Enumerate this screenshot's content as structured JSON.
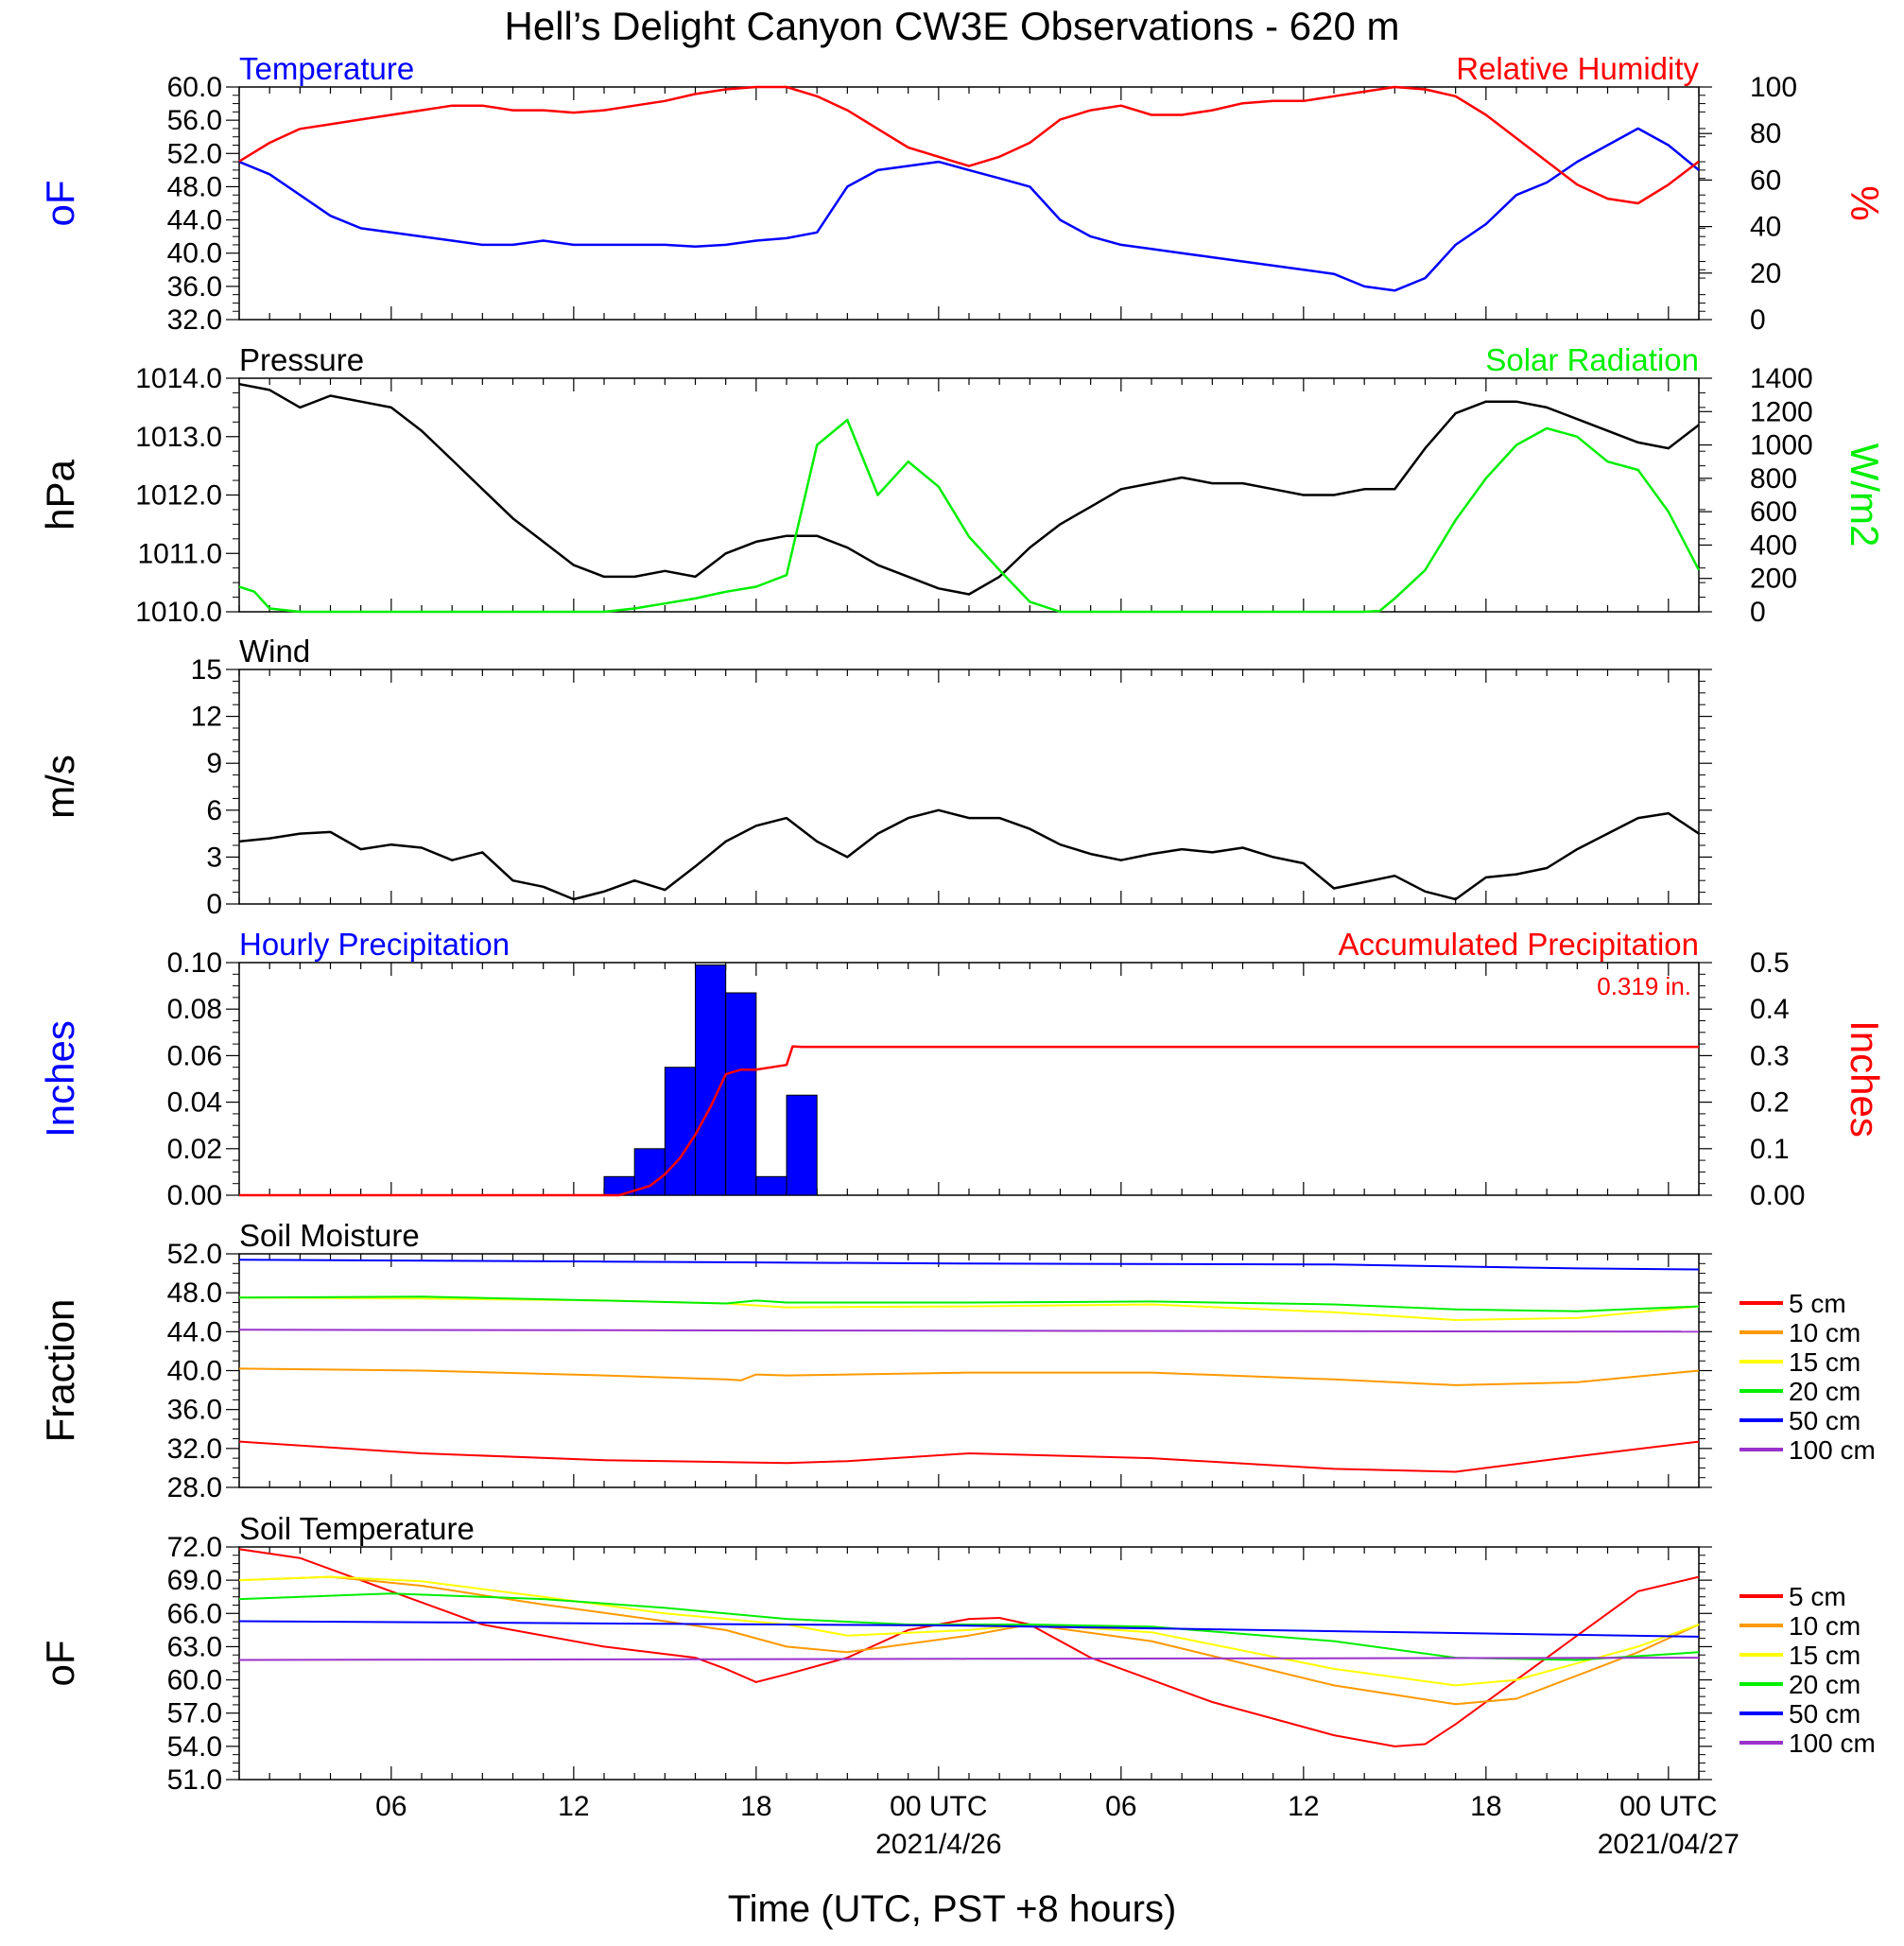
{
  "figure": {
    "title": "Hell’s Delight Canyon CW3E Observations - 620 m",
    "xlabel": "Time (UTC, PST +8 hours)",
    "x_ticks": [
      "06",
      "12",
      "18",
      "00 UTC",
      "06",
      "12",
      "18",
      "00 UTC"
    ],
    "dates": [
      "2021/4/26",
      "2021/04/27"
    ],
    "colors": {
      "blue": "#0000ff",
      "red": "#ff0000",
      "green": "#00ee00",
      "black": "#000000",
      "orange": "#ff9900",
      "yellow": "#ffff00",
      "purple": "#9932cc"
    }
  },
  "chart_data": [
    {
      "type": "line",
      "x_unit": "hours since 2021-04-25 01:00 UTC",
      "title_left": "Temperature",
      "title_right": "Relative Humidity",
      "ylabel_left": "oF",
      "ylabel_right": "%",
      "ylim_left": [
        32,
        60
      ],
      "ylim_right": [
        0,
        100
      ],
      "yticks_left": [
        "60.0",
        "56.0",
        "52.0",
        "48.0",
        "44.0",
        "40.0",
        "36.0",
        "32.0"
      ],
      "yticks_right": [
        "100",
        "80",
        "60",
        "40",
        "20",
        "0"
      ],
      "series": [
        {
          "name": "Temperature",
          "axis": "left",
          "color": "#0000ff",
          "x": [
            0,
            1,
            2,
            3,
            4,
            5,
            6,
            7,
            8,
            9,
            10,
            11,
            12,
            13,
            14,
            15,
            16,
            17,
            18,
            19,
            20,
            21,
            22,
            23,
            24,
            25,
            26,
            27,
            28,
            29,
            30,
            31,
            32,
            33,
            34,
            35,
            36,
            37,
            38,
            39,
            40,
            41,
            42,
            43,
            44,
            45,
            46,
            47,
            48
          ],
          "y": [
            51,
            49.5,
            47,
            44.5,
            43,
            42.5,
            42,
            41.5,
            41,
            41,
            41.5,
            41,
            41,
            41,
            41,
            40.8,
            41,
            41.5,
            41.8,
            42.5,
            48,
            50,
            50.5,
            51,
            50,
            49,
            48,
            44,
            42,
            41,
            40.5,
            40,
            39.5,
            39,
            38.5,
            38,
            37.5,
            36,
            35.5,
            37,
            41,
            43.5,
            47,
            48.5,
            51,
            53,
            55,
            53,
            50
          ]
        },
        {
          "name": "Relative Humidity",
          "axis": "right",
          "color": "#ff0000",
          "x": [
            0,
            1,
            2,
            3,
            4,
            5,
            6,
            7,
            8,
            9,
            10,
            11,
            12,
            13,
            14,
            15,
            16,
            17,
            18,
            19,
            20,
            21,
            22,
            23,
            24,
            25,
            26,
            27,
            28,
            29,
            30,
            31,
            32,
            33,
            34,
            35,
            36,
            37,
            38,
            39,
            40,
            41,
            42,
            43,
            44,
            45,
            46,
            47,
            48
          ],
          "y": [
            68,
            76,
            82,
            84,
            86,
            88,
            90,
            92,
            92,
            90,
            90,
            89,
            90,
            92,
            94,
            97,
            99,
            100,
            100,
            96,
            90,
            82,
            74,
            70,
            66,
            70,
            76,
            86,
            90,
            92,
            88,
            88,
            90,
            93,
            94,
            94,
            96,
            98,
            100,
            99,
            96,
            88,
            78,
            68,
            58,
            52,
            50,
            58,
            68
          ]
        }
      ]
    },
    {
      "type": "line",
      "x_unit": "hours since 2021-04-25 01:00 UTC",
      "title_left": "Pressure",
      "title_right": "Solar Radiation",
      "ylabel_left": "hPa",
      "ylabel_right": "W/m2",
      "ylim_left": [
        1010,
        1014
      ],
      "ylim_right": [
        0,
        1400
      ],
      "yticks_left": [
        "1014.0",
        "1013.0",
        "1012.0",
        "1011.0",
        "1010.0"
      ],
      "yticks_right": [
        "1400",
        "1200",
        "1000",
        "800",
        "600",
        "400",
        "200",
        "0"
      ],
      "series": [
        {
          "name": "Pressure",
          "axis": "left",
          "color": "#000000",
          "x": [
            0,
            1,
            2,
            3,
            4,
            5,
            6,
            7,
            8,
            9,
            10,
            11,
            12,
            13,
            14,
            15,
            16,
            17,
            18,
            19,
            20,
            21,
            22,
            23,
            24,
            25,
            26,
            27,
            28,
            29,
            30,
            31,
            32,
            33,
            34,
            35,
            36,
            37,
            38,
            39,
            40,
            41,
            42,
            43,
            44,
            45,
            46,
            47,
            48
          ],
          "y": [
            1013.9,
            1013.8,
            1013.5,
            1013.7,
            1013.6,
            1013.5,
            1013.1,
            1012.6,
            1012.1,
            1011.6,
            1011.2,
            1010.8,
            1010.6,
            1010.6,
            1010.7,
            1010.6,
            1011,
            1011.2,
            1011.3,
            1011.3,
            1011.1,
            1010.8,
            1010.6,
            1010.4,
            1010.3,
            1010.6,
            1011.1,
            1011.5,
            1011.8,
            1012.1,
            1012.2,
            1012.3,
            1012.2,
            1012.2,
            1012.1,
            1012,
            1012,
            1012.1,
            1012.1,
            1012.8,
            1013.4,
            1013.6,
            1013.6,
            1013.5,
            1013.3,
            1013.1,
            1012.9,
            1012.8,
            1013.2
          ]
        },
        {
          "name": "Solar Radiation",
          "axis": "right",
          "color": "#00ee00",
          "x": [
            0,
            0.5,
            1,
            2,
            3,
            4,
            5,
            6,
            7,
            8,
            9,
            10,
            11,
            12,
            13,
            14,
            15,
            16,
            17,
            18,
            19,
            20,
            21,
            22,
            23,
            24,
            25,
            26,
            27,
            28,
            29,
            30,
            31,
            32,
            33,
            34,
            35,
            36,
            37,
            37.5,
            38,
            39,
            40,
            41,
            42,
            43,
            44,
            45,
            46,
            47,
            48
          ],
          "y": [
            150,
            120,
            20,
            0,
            0,
            0,
            0,
            0,
            0,
            0,
            0,
            0,
            0,
            0,
            20,
            50,
            80,
            120,
            150,
            220,
            1000,
            1150,
            700,
            900,
            750,
            450,
            250,
            60,
            0,
            0,
            0,
            0,
            0,
            0,
            0,
            0,
            0,
            0,
            0,
            5,
            80,
            250,
            550,
            800,
            1000,
            1100,
            1050,
            900,
            850,
            600,
            250
          ]
        }
      ]
    },
    {
      "type": "line",
      "x_unit": "hours since 2021-04-25 01:00 UTC",
      "title_left": "Wind",
      "ylabel_left": "m/s",
      "ylim_left": [
        0,
        15
      ],
      "yticks_left": [
        "15",
        "12",
        "9",
        "6",
        "3",
        "0"
      ],
      "series": [
        {
          "name": "Wind",
          "axis": "left",
          "color": "#000000",
          "x": [
            0,
            1,
            2,
            3,
            4,
            5,
            6,
            7,
            8,
            9,
            10,
            11,
            12,
            13,
            14,
            15,
            16,
            17,
            18,
            19,
            20,
            21,
            22,
            23,
            24,
            25,
            26,
            27,
            28,
            29,
            30,
            31,
            32,
            33,
            34,
            35,
            36,
            37,
            38,
            39,
            40,
            41,
            42,
            43,
            44,
            45,
            46,
            47,
            48
          ],
          "y": [
            4,
            4.2,
            4.5,
            4.6,
            3.5,
            3.8,
            3.6,
            2.8,
            3.3,
            1.5,
            1.1,
            0.3,
            0.8,
            1.5,
            0.9,
            2.4,
            4,
            5,
            5.5,
            4,
            3,
            4.5,
            5.5,
            6,
            5.5,
            5.5,
            4.8,
            3.8,
            3.2,
            2.8,
            3.2,
            3.5,
            3.3,
            3.6,
            3,
            2.6,
            1,
            1.4,
            1.8,
            0.8,
            0.3,
            1.7,
            1.9,
            2.3,
            3.5,
            4.5,
            5.5,
            5.8,
            4.5
          ]
        }
      ]
    },
    {
      "type": "bar",
      "x_unit": "hours since 2021-04-25 01:00 UTC",
      "title_left": "Hourly Precipitation",
      "title_right": "Accumulated Precipitation",
      "annotation": "0.319 in.",
      "ylabel_left": "Inches",
      "ylabel_right": "Inches",
      "ylim_left": [
        0,
        0.1
      ],
      "ylim_right": [
        0,
        0.5
      ],
      "yticks_left": [
        "0.10",
        "0.08",
        "0.06",
        "0.04",
        "0.02",
        "0.00"
      ],
      "yticks_right": [
        "0.5",
        "0.4",
        "0.3",
        "0.2",
        "0.1",
        "0.00"
      ],
      "bars": {
        "name": "Hourly Precipitation",
        "color": "#0000ff",
        "x": [
          12,
          13,
          14,
          15,
          16,
          17,
          18
        ],
        "values": [
          0.008,
          0.02,
          0.055,
          0.099,
          0.087,
          0.008,
          0.043
        ]
      },
      "series": [
        {
          "name": "Accumulated Precipitation",
          "axis": "right",
          "color": "#ff0000",
          "x": [
            0,
            12.5,
            13,
            13.5,
            14,
            14.5,
            15,
            15.5,
            16,
            16.5,
            17,
            17.5,
            18,
            18.2,
            18.5,
            48
          ],
          "y": [
            0,
            0,
            0.01,
            0.02,
            0.045,
            0.08,
            0.13,
            0.19,
            0.26,
            0.27,
            0.27,
            0.275,
            0.28,
            0.32,
            0.319,
            0.319
          ]
        }
      ]
    },
    {
      "type": "line",
      "x_unit": "hours since 2021-04-25 01:00 UTC",
      "title_left": "Soil Moisture",
      "ylabel_left": "Fraction",
      "ylim_left": [
        28,
        52
      ],
      "yticks_left": [
        "52.0",
        "48.0",
        "44.0",
        "40.0",
        "36.0",
        "32.0",
        "28.0"
      ],
      "legend": [
        "5 cm",
        "10 cm",
        "15 cm",
        "20 cm",
        "50 cm",
        "100 cm"
      ],
      "series": [
        {
          "name": "5 cm",
          "color": "#ff0000",
          "x": [
            0,
            6,
            12,
            16,
            18,
            20,
            24,
            30,
            36,
            40,
            44,
            48
          ],
          "y": [
            32.7,
            31.5,
            30.8,
            30.6,
            30.5,
            30.7,
            31.5,
            31,
            29.9,
            29.6,
            31.2,
            32.7
          ]
        },
        {
          "name": "10 cm",
          "color": "#ff9900",
          "x": [
            0,
            6,
            12,
            16,
            16.5,
            17,
            18,
            24,
            30,
            36,
            40,
            44,
            48
          ],
          "y": [
            40.2,
            40,
            39.5,
            39.1,
            39,
            39.6,
            39.5,
            39.8,
            39.8,
            39.1,
            38.5,
            38.8,
            40
          ]
        },
        {
          "name": "15 cm",
          "color": "#ffff00",
          "x": [
            0,
            6,
            12,
            16,
            18,
            24,
            30,
            36,
            40,
            44,
            48
          ],
          "y": [
            47.5,
            47.4,
            47.2,
            46.9,
            46.5,
            46.6,
            46.8,
            46,
            45.2,
            45.4,
            46.6
          ]
        },
        {
          "name": "20 cm",
          "color": "#00ee00",
          "x": [
            0,
            6,
            12,
            16,
            17,
            18,
            24,
            30,
            36,
            40,
            44,
            48
          ],
          "y": [
            47.5,
            47.6,
            47.2,
            46.9,
            47.2,
            47,
            47,
            47.1,
            46.8,
            46.3,
            46.1,
            46.6
          ]
        },
        {
          "name": "50 cm",
          "color": "#0000ff",
          "x": [
            0,
            12,
            24,
            36,
            44,
            48
          ],
          "y": [
            51.4,
            51.2,
            51,
            50.9,
            50.5,
            50.4
          ]
        },
        {
          "name": "100 cm",
          "color": "#9932cc",
          "x": [
            0,
            24,
            48
          ],
          "y": [
            44.2,
            44.1,
            44
          ]
        }
      ]
    },
    {
      "type": "line",
      "x_unit": "hours since 2021-04-25 01:00 UTC",
      "title_left": "Soil Temperature",
      "ylabel_left": "oF",
      "ylim_left": [
        51,
        72
      ],
      "yticks_left": [
        "72.0",
        "69.0",
        "66.0",
        "63.0",
        "60.0",
        "57.0",
        "54.0",
        "51.0"
      ],
      "legend": [
        "5 cm",
        "10 cm",
        "15 cm",
        "20 cm",
        "50 cm",
        "100 cm"
      ],
      "series": [
        {
          "name": "5 cm",
          "color": "#ff0000",
          "x": [
            0,
            2,
            5,
            8,
            12,
            15,
            16,
            17,
            18,
            20,
            22,
            24,
            25,
            26,
            28,
            32,
            36,
            38,
            39,
            40,
            42,
            44,
            46,
            48
          ],
          "y": [
            71.8,
            71,
            68,
            65,
            63,
            62,
            61,
            59.8,
            60.5,
            62,
            64.5,
            65.5,
            65.6,
            65,
            62,
            58,
            55,
            54,
            54.2,
            56,
            60,
            64,
            68,
            69.3
          ]
        },
        {
          "name": "10 cm",
          "color": "#ff9900",
          "x": [
            0,
            3,
            6,
            10,
            14,
            16,
            18,
            20,
            24,
            26,
            30,
            36,
            40,
            42,
            46,
            48
          ],
          "y": [
            69,
            69.3,
            68.5,
            66.8,
            65.3,
            64.5,
            63,
            62.5,
            64,
            65,
            63.5,
            59.5,
            57.8,
            58.3,
            62.5,
            65
          ]
        },
        {
          "name": "15 cm",
          "color": "#ffff00",
          "x": [
            0,
            3,
            6,
            10,
            14,
            18,
            20,
            24,
            26,
            30,
            36,
            40,
            42,
            46,
            48
          ],
          "y": [
            69,
            69.3,
            68.9,
            67.5,
            66,
            65,
            64,
            64.5,
            65,
            64.3,
            61,
            59.5,
            60,
            63,
            65
          ]
        },
        {
          "name": "20 cm",
          "color": "#00ee00",
          "x": [
            0,
            5,
            10,
            14,
            18,
            22,
            26,
            30,
            36,
            40,
            44,
            48
          ],
          "y": [
            67.3,
            67.8,
            67.3,
            66.5,
            65.5,
            65,
            65,
            64.8,
            63.5,
            62,
            61.8,
            62.5
          ]
        },
        {
          "name": "50 cm",
          "color": "#0000ff",
          "x": [
            0,
            24,
            48
          ],
          "y": [
            65.3,
            64.9,
            63.9
          ]
        },
        {
          "name": "100 cm",
          "color": "#9932cc",
          "x": [
            0,
            24,
            48
          ],
          "y": [
            61.8,
            61.9,
            62
          ]
        }
      ]
    }
  ]
}
